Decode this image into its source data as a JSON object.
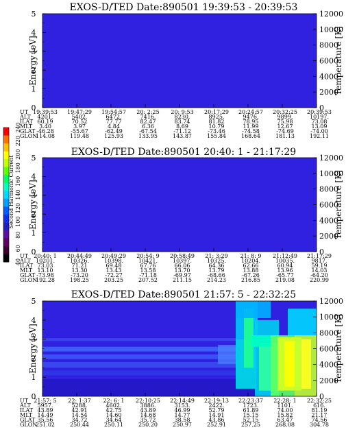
{
  "colorbar": {
    "label": "Second Harmonic Current",
    "ticks": [
      "40",
      "60",
      "80",
      "100",
      "120",
      "140",
      "160",
      "180",
      "200",
      "220",
      "240"
    ],
    "colors": [
      "#000000",
      "#3a0030",
      "#600060",
      "#5a10a0",
      "#2020c0",
      "#1030f0",
      "#0060ff",
      "#00a0ff",
      "#00d8ff",
      "#00ffc0",
      "#00ff60",
      "#60ff00",
      "#c0ff00",
      "#ffff00",
      "#ffc000",
      "#ff7000",
      "#ff0000"
    ]
  },
  "row_labels": [
    "UT",
    "ALT",
    "ILAT",
    "MLT",
    "GLAT",
    "GLON"
  ],
  "chart_data": [
    {
      "type": "heatmap",
      "title": "EXOS-D/TED   Date:890501   19:39:53 - 20:39:53",
      "ylabel": "Energy [eV]",
      "y2label": "Temperature [K]",
      "ylim": [
        0,
        5
      ],
      "y2lim": [
        0,
        12000
      ],
      "yticks": [
        "0",
        "1",
        "2",
        "3",
        "4",
        "5"
      ],
      "y2ticks": [
        "0",
        "2000",
        "4000",
        "6000",
        "8000",
        "10000",
        "12000"
      ],
      "dominant_color": "#3020e0",
      "structure": "uniform",
      "table": {
        "UT": [
          "19:39:53",
          "19:47:29",
          "19:54:57",
          "20: 2:25",
          "20: 9:53",
          "20:17:29",
          "20:24:57",
          "20:32:25",
          "20:39:53"
        ],
        "ALT": [
          "4201.",
          "5402.",
          "6472.",
          "7416.",
          "8230.",
          "8925.",
          "9476.",
          "9899.",
          "10197."
        ],
        "ILAT": [
          "60.19",
          "70.52",
          "77.77",
          "82.47",
          "83.74",
          "81.82",
          "78.95",
          "75.98",
          "73.08"
        ],
        "MLT": [
          "3.40",
          "3.97",
          "4.84",
          "6.36",
          "8.69",
          "10.79",
          "11.99",
          "12.67",
          "13.09"
        ],
        "GLAT": [
          "-46.28",
          "-55.67",
          "-62.49",
          "-67.54",
          "-71.12",
          "-73.46",
          "-74.58",
          "-74.69",
          "-74.00"
        ],
        "GLON": [
          "114.08",
          "119.48",
          "125.93",
          "133.95",
          "143.87",
          "155.84",
          "168.64",
          "181.13",
          "192.11"
        ]
      }
    },
    {
      "type": "heatmap",
      "title": "EXOS-D/TED   Date:890501   20:40: 1 - 21:17:29",
      "ylabel": "Energy [eV]",
      "y2label": "Temperature [K]",
      "ylim": [
        0,
        5
      ],
      "y2lim": [
        0,
        12000
      ],
      "yticks": [
        "0",
        "1",
        "2",
        "3",
        "4",
        "5"
      ],
      "y2ticks": [
        "0",
        "2000",
        "4000",
        "6000",
        "8000",
        "10000",
        "12000"
      ],
      "dominant_color": "#3020e0",
      "structure": "uniform",
      "table": {
        "UT": [
          "20:40: 1",
          "20:44:49",
          "20:49:29",
          "20:54: 9",
          "20:58:49",
          "21: 3:29",
          "21: 8: 9",
          "21:12:49",
          "21:17:29"
        ],
        "ALT": [
          "10201.",
          "10326.",
          "10398.",
          "10421.",
          "10397.",
          "10325.",
          "10204.",
          "10035.",
          "9817."
        ],
        "ILAT": [
          "73.03",
          "71.21",
          "69.48",
          "67.76",
          "66.06",
          "64.36",
          "62.66",
          "60.94",
          "59.19"
        ],
        "MLT": [
          "13.10",
          "13.30",
          "13.43",
          "13.58",
          "13.70",
          "13.79",
          "13.88",
          "13.96",
          "14.03"
        ],
        "GLAT": [
          "-73.98",
          "-73.20",
          "-72.27",
          "-71.18",
          "-69.97",
          "-68.66",
          "-67.26",
          "-65.77",
          "-64.20"
        ],
        "GLON": [
          "192.28",
          "198.25",
          "203.25",
          "207.52",
          "211.15",
          "214.23",
          "216.85",
          "219.08",
          "220.99"
        ]
      }
    },
    {
      "type": "heatmap",
      "title": "EXOS-D/TED   Date:890501   21:57: 5 - 22:32:25",
      "ylabel": "Energy [eV]",
      "y2label": "Temperature [K]",
      "ylim": [
        0,
        5
      ],
      "y2lim": [
        0,
        12000
      ],
      "yticks": [
        "0",
        "1",
        "2",
        "3",
        "4",
        "5"
      ],
      "y2ticks": [
        "0",
        "2000",
        "4000",
        "6000",
        "8000",
        "10000",
        "12000"
      ],
      "dominant_color": "#3020e0",
      "structure": "banded-then-enhanced",
      "table": {
        "UT": [
          "21:57: 5",
          "22: 1:37",
          "22: 6: 1",
          "22:10:25",
          "22:14:49",
          "22:19:13",
          "22:23:37",
          "22:28: 1",
          "22:32:25"
        ],
        "ALT": [
          "5957.",
          "5288.",
          "4602.",
          "3886.",
          "3153.",
          "2422.",
          "1723.",
          "1101.",
          "616."
        ],
        "ILAT": [
          "43.89",
          "42.91",
          "42.75",
          "43.89",
          "46.99",
          "52.79",
          "61.89",
          "74.00",
          "81.19"
        ],
        "MLT": [
          "14.49",
          "14.54",
          "14.60",
          "14.68",
          "14.77",
          "14.91",
          "15.15",
          "15.82",
          "21.17"
        ],
        "GLAT": [
          "35.56",
          "34.72",
          "34.64",
          "35.72",
          "38.58",
          "43.86",
          "52.15",
          "63.47",
          "74.56"
        ],
        "GLON": [
          "251.02",
          "250.44",
          "250.11",
          "250.20",
          "250.97",
          "252.91",
          "257.25",
          "268.08",
          "304.78"
        ]
      }
    }
  ]
}
